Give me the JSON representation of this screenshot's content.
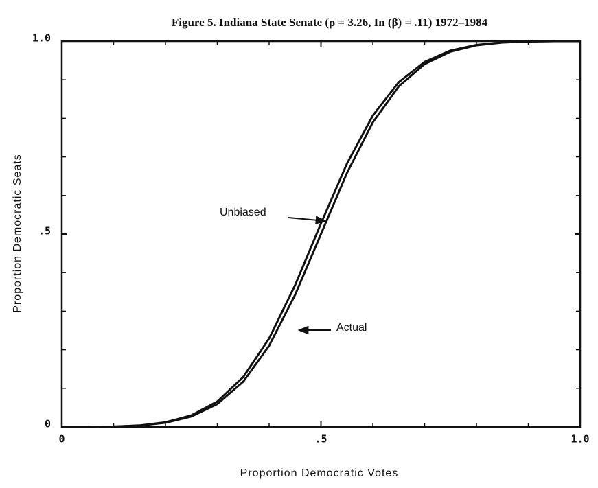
{
  "chart_data": {
    "type": "line",
    "title": "Figure 5.   Indiana State Senate (ρ = 3.26, In (β) = .11) 1972–1984",
    "xlabel": "Proportion Democratic Votes",
    "ylabel": "Proportion Democratic Seats",
    "x": [
      0,
      0.05,
      0.1,
      0.15,
      0.2,
      0.25,
      0.3,
      0.35,
      0.4,
      0.45,
      0.5,
      0.55,
      0.6,
      0.65,
      0.7,
      0.75,
      0.8,
      0.85,
      0.9,
      0.95,
      1
    ],
    "series": [
      {
        "name": "Unbiased",
        "color": "#111111",
        "values": [
          0,
          0.0001,
          0.0008,
          0.0035,
          0.0108,
          0.0271,
          0.0594,
          0.1173,
          0.2105,
          0.3421,
          0.5,
          0.6579,
          0.7895,
          0.8827,
          0.9406,
          0.9729,
          0.9892,
          0.9965,
          0.9992,
          0.9999,
          1
        ]
      },
      {
        "name": "Actual",
        "color": "#111111",
        "values": [
          0,
          0.0001,
          0.0009,
          0.0039,
          0.012,
          0.0301,
          0.0659,
          0.1292,
          0.2294,
          0.3673,
          0.5275,
          0.6823,
          0.8072,
          0.8936,
          0.9464,
          0.9757,
          0.9903,
          0.9969,
          0.9993,
          0.9999,
          1
        ]
      }
    ],
    "xlim": [
      0,
      1
    ],
    "ylim": [
      0,
      1
    ],
    "xticks": [
      0,
      {
        "value": 0.5,
        "label": ".5"
      },
      {
        "value": 1,
        "label": "1.0"
      }
    ],
    "yticks": [
      0,
      {
        "value": 0.5,
        "label": ".5"
      },
      {
        "value": 1,
        "label": "1.0"
      }
    ],
    "xticks_minor": [
      0.1,
      0.2,
      0.3,
      0.4,
      0.6,
      0.7,
      0.8,
      0.9
    ],
    "yticks_minor": [
      0.1,
      0.2,
      0.3,
      0.4,
      0.6,
      0.7,
      0.8,
      0.9
    ],
    "grid": false
  }
}
